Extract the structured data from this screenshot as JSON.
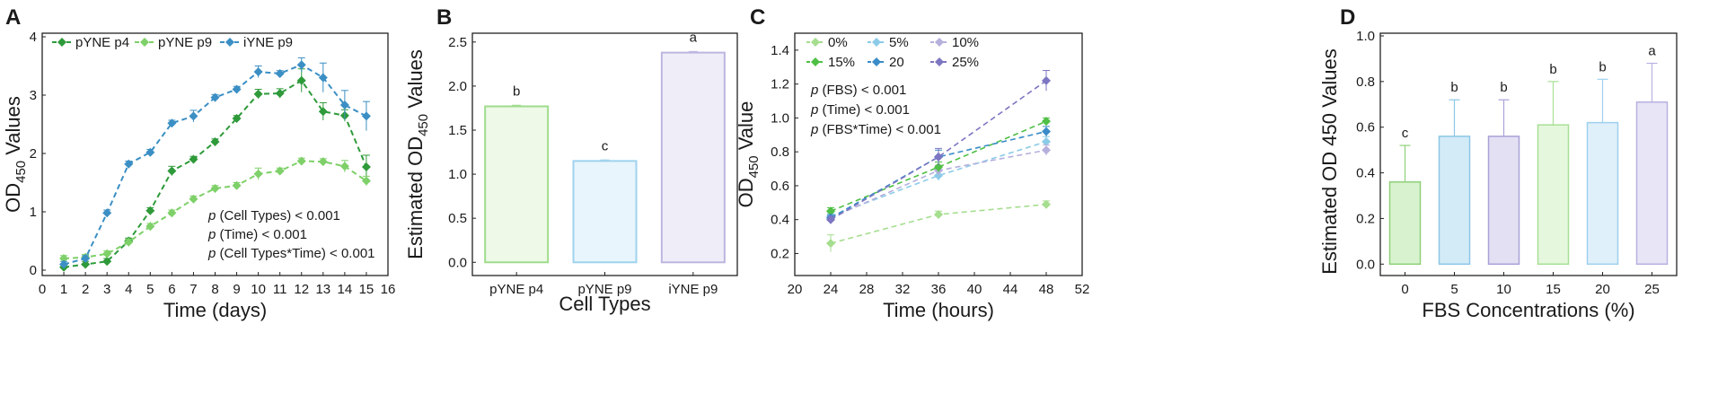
{
  "chart_data": [
    {
      "panel": "A",
      "type": "line",
      "xlabel": "Time (days)",
      "ylabel": "OD450 Values",
      "ylabel_main": "OD",
      "ylabel_sub": "450",
      "ylabel_rest": " Values",
      "xlim": [
        0,
        16
      ],
      "ylim": [
        0,
        4
      ],
      "xticks": [
        0,
        1,
        2,
        3,
        4,
        5,
        6,
        7,
        8,
        9,
        10,
        11,
        12,
        13,
        14,
        15,
        16
      ],
      "yticks": [
        0,
        1,
        2,
        3,
        4
      ],
      "legend": "top-left",
      "series": [
        {
          "name": "pYNE p4",
          "color": "#2e9a3a",
          "marker": "diamond",
          "x": [
            1,
            2,
            3,
            4,
            5,
            6,
            7,
            8,
            9,
            10,
            11,
            12,
            13,
            14,
            15
          ],
          "y": [
            0.05,
            0.1,
            0.15,
            0.5,
            1.02,
            1.7,
            1.9,
            2.2,
            2.6,
            3.02,
            3.03,
            3.25,
            2.72,
            2.65,
            1.77
          ],
          "err": [
            0.05,
            0.05,
            0.05,
            0.05,
            0.05,
            0.08,
            0.05,
            0.05,
            0.05,
            0.08,
            0.08,
            0.2,
            0.15,
            0.1,
            0.2
          ]
        },
        {
          "name": "pYNE p9",
          "color": "#7ed068",
          "marker": "diamond",
          "x": [
            1,
            2,
            3,
            4,
            5,
            6,
            7,
            8,
            9,
            10,
            11,
            12,
            13,
            14,
            15
          ],
          "y": [
            0.2,
            0.22,
            0.28,
            0.48,
            0.75,
            0.98,
            1.22,
            1.4,
            1.45,
            1.65,
            1.7,
            1.87,
            1.86,
            1.78,
            1.53
          ],
          "err": [
            0.05,
            0.05,
            0.05,
            0.05,
            0.05,
            0.05,
            0.05,
            0.05,
            0.05,
            0.1,
            0.05,
            0.05,
            0.05,
            0.1,
            0.08
          ]
        },
        {
          "name": "iYNE p9",
          "color": "#3b8fc4",
          "marker": "diamond",
          "x": [
            1,
            2,
            3,
            4,
            5,
            6,
            7,
            8,
            9,
            10,
            11,
            12,
            13,
            14,
            15
          ],
          "y": [
            0.1,
            0.2,
            0.98,
            1.82,
            2.02,
            2.52,
            2.64,
            2.96,
            3.1,
            3.4,
            3.37,
            3.52,
            3.3,
            2.83,
            2.64
          ],
          "err": [
            0.05,
            0.05,
            0.05,
            0.05,
            0.05,
            0.05,
            0.1,
            0.05,
            0.05,
            0.1,
            0.05,
            0.12,
            0.25,
            0.25,
            0.25
          ]
        }
      ],
      "annotations": [
        {
          "p": "p",
          "text": " (Cell Types) < 0.001"
        },
        {
          "p": "p",
          "text": " (Time) < 0.001"
        },
        {
          "p": "p",
          "text": " (Cell Types*Time) < 0.001"
        }
      ]
    },
    {
      "panel": "B",
      "type": "bar",
      "xlabel": "Cell Types",
      "ylabel": "Estimated OD450 Values",
      "ylabel_main": "Estimated OD",
      "ylabel_sub": "450",
      "ylabel_rest": " Values",
      "ylim": [
        -0.15,
        2.6
      ],
      "yticks": [
        0.0,
        0.5,
        1.0,
        1.5,
        2.0,
        2.5
      ],
      "ytick_labels": [
        "0.0",
        "0.5",
        "1.0",
        "1.5",
        "2.0",
        "2.5"
      ],
      "categories": [
        "pYNE p4",
        "pYNE p9",
        "iYNE p9"
      ],
      "values": [
        1.77,
        1.15,
        2.38
      ],
      "err": [
        0.01,
        0.01,
        0.01
      ],
      "letters": [
        "b",
        "c",
        "a"
      ],
      "colors": [
        {
          "fill": "#eef9e8",
          "stroke": "#9fdc8c"
        },
        {
          "fill": "#e8f5fc",
          "stroke": "#9fd3ee"
        },
        {
          "fill": "#efedf8",
          "stroke": "#bcb6e0"
        }
      ]
    },
    {
      "panel": "C",
      "type": "line",
      "xlabel": "Time (hours)",
      "ylabel": "OD450 Value",
      "ylabel_main": "OD",
      "ylabel_sub": "450",
      "ylabel_rest": " Value",
      "xlim": [
        20,
        52
      ],
      "ylim": [
        0.07,
        1.5
      ],
      "xticks": [
        20,
        24,
        28,
        32,
        36,
        40,
        44,
        48,
        52
      ],
      "yticks": [
        0.2,
        0.4,
        0.6,
        0.8,
        1.0,
        1.2,
        1.4
      ],
      "ytick_labels": [
        "0.2",
        "0.4",
        "0.6",
        "0.8",
        "1.0",
        "1.2",
        "1.4"
      ],
      "legend": "top-left",
      "series": [
        {
          "name": "0%",
          "color": "#a6de8f",
          "x": [
            24,
            36,
            48
          ],
          "y": [
            0.26,
            0.43,
            0.49
          ],
          "err": [
            0.05,
            0.02,
            0.02
          ]
        },
        {
          "name": "5%",
          "color": "#8ccbe8",
          "x": [
            24,
            36,
            48
          ],
          "y": [
            0.42,
            0.66,
            0.86
          ],
          "err": [
            0.02,
            0.03,
            0.03
          ]
        },
        {
          "name": "10%",
          "color": "#b5b0dc",
          "x": [
            24,
            36,
            48
          ],
          "y": [
            0.41,
            0.69,
            0.81
          ],
          "err": [
            0.02,
            0.03,
            0.03
          ]
        },
        {
          "name": "15%",
          "color": "#4fbf45",
          "x": [
            24,
            36,
            48
          ],
          "y": [
            0.45,
            0.71,
            0.98
          ],
          "err": [
            0.02,
            0.03,
            0.02
          ]
        },
        {
          "name": "20",
          "color": "#3a8cc8",
          "x": [
            24,
            36,
            48
          ],
          "y": [
            0.41,
            0.77,
            0.92
          ],
          "err": [
            0.02,
            0.04,
            0.03
          ]
        },
        {
          "name": "25%",
          "color": "#7d76c2",
          "x": [
            24,
            36,
            48
          ],
          "y": [
            0.4,
            0.77,
            1.22
          ],
          "err": [
            0.02,
            0.05,
            0.06
          ]
        }
      ],
      "annotations": [
        {
          "p": "p",
          "text": " (FBS) < 0.001"
        },
        {
          "p": "p",
          "text": " (Time) < 0.001"
        },
        {
          "p": "p",
          "text": " (FBS*Time) < 0.001"
        }
      ]
    },
    {
      "panel": "D",
      "type": "bar",
      "xlabel": "FBS Concentrations (%)",
      "ylabel": "Estimated OD 450 Values",
      "ylim": [
        -0.05,
        1.0
      ],
      "yticks": [
        0.0,
        0.2,
        0.4,
        0.6,
        0.8,
        1.0
      ],
      "ytick_labels": [
        "0.0",
        "0.2",
        "0.4",
        "0.6",
        "0.8",
        "1.0"
      ],
      "categories": [
        "0",
        "5",
        "10",
        "15",
        "20",
        "25"
      ],
      "values": [
        0.36,
        0.56,
        0.56,
        0.61,
        0.62,
        0.71
      ],
      "err": [
        0.16,
        0.16,
        0.16,
        0.19,
        0.19,
        0.17
      ],
      "letters": [
        "c",
        "b",
        "b",
        "b",
        "b",
        "a"
      ],
      "colors": [
        {
          "fill": "#d8f2cf",
          "stroke": "#8fd079"
        },
        {
          "fill": "#d3ebf7",
          "stroke": "#8cc6e6"
        },
        {
          "fill": "#e3e0f3",
          "stroke": "#a9a2d8"
        },
        {
          "fill": "#e5f7dd",
          "stroke": "#a8e095"
        },
        {
          "fill": "#dff0fa",
          "stroke": "#9fd0ee"
        },
        {
          "fill": "#e8e5f6",
          "stroke": "#b8b1e0"
        }
      ]
    }
  ]
}
